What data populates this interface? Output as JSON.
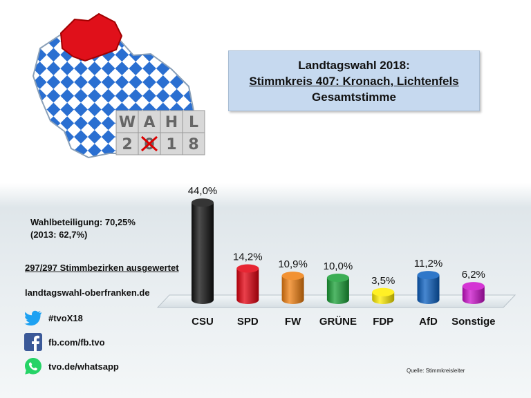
{
  "header": {
    "title_line1": "Landtagswahl 2018:",
    "title_line2": "Stimmkreis 407: Kronach, Lichtenfels",
    "title_line3": "Gesamtstimme"
  },
  "logo": {
    "row1": [
      "W",
      "A",
      "H",
      "L"
    ],
    "row2": [
      "2",
      "0",
      "1",
      "8"
    ]
  },
  "info": {
    "turnout": "Wahlbeteiligung: 70,25%",
    "turnout_previous": "(2013: 62,7%)",
    "districts": "297/297 Stimmbezirken ausgewertet",
    "website": "landtagswahl-oberfranken.de"
  },
  "social": {
    "twitter": "#tvoX18",
    "facebook": "fb.com/fb.tvo",
    "whatsapp": "tvo.de/whatsapp"
  },
  "source": "Quelle: Stimmkreisleiter",
  "colors": {
    "CSU": "#111111",
    "SPD": "#e3000f",
    "FW": "#f07f10",
    "GRÜNE": "#1aa037",
    "FDP": "#ffed00",
    "AfD": "#0a5fc0",
    "Sonstige": "#cc11cc"
  },
  "chart_data": {
    "type": "bar",
    "categories": [
      "CSU",
      "SPD",
      "FW",
      "GRÜNE",
      "FDP",
      "AfD",
      "Sonstige"
    ],
    "values": [
      44.0,
      14.2,
      10.9,
      10.0,
      3.5,
      11.2,
      6.2
    ],
    "value_labels": [
      "44,0%",
      "14,2%",
      "10,9%",
      "10,0%",
      "3,5%",
      "11,2%",
      "6,2%"
    ],
    "unit": "%",
    "title": "",
    "xlabel": "",
    "ylabel": "",
    "grid": false,
    "legend": "none"
  }
}
